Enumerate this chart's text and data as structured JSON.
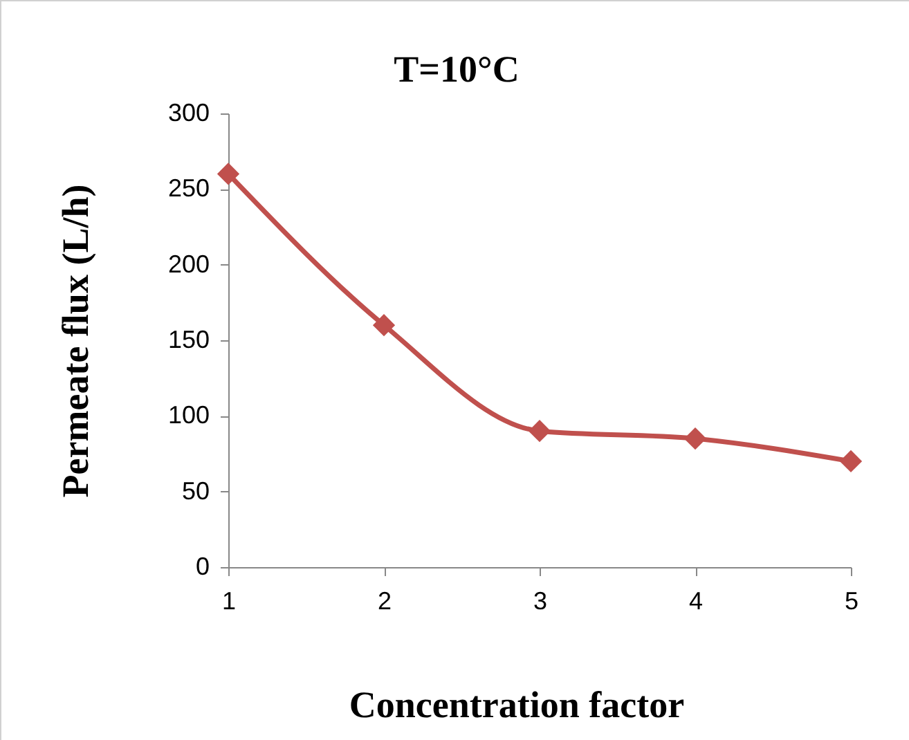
{
  "chart_data": {
    "type": "line",
    "title": "T=10°C",
    "xlabel": "Concentration factor",
    "ylabel": "Permeate flux (L/h)",
    "x": [
      1,
      2,
      3,
      4,
      5
    ],
    "series": [
      {
        "color": "#c0504d",
        "values": [
          260,
          160,
          90,
          85,
          70
        ]
      }
    ],
    "xlim": [
      1,
      5
    ],
    "xticks": [
      1,
      2,
      3,
      4,
      5
    ],
    "ylim": [
      0,
      300
    ],
    "yticks": [
      0,
      50,
      100,
      150,
      200,
      250,
      300
    ],
    "grid": false,
    "marker": "diamond",
    "line_style": "solid"
  }
}
